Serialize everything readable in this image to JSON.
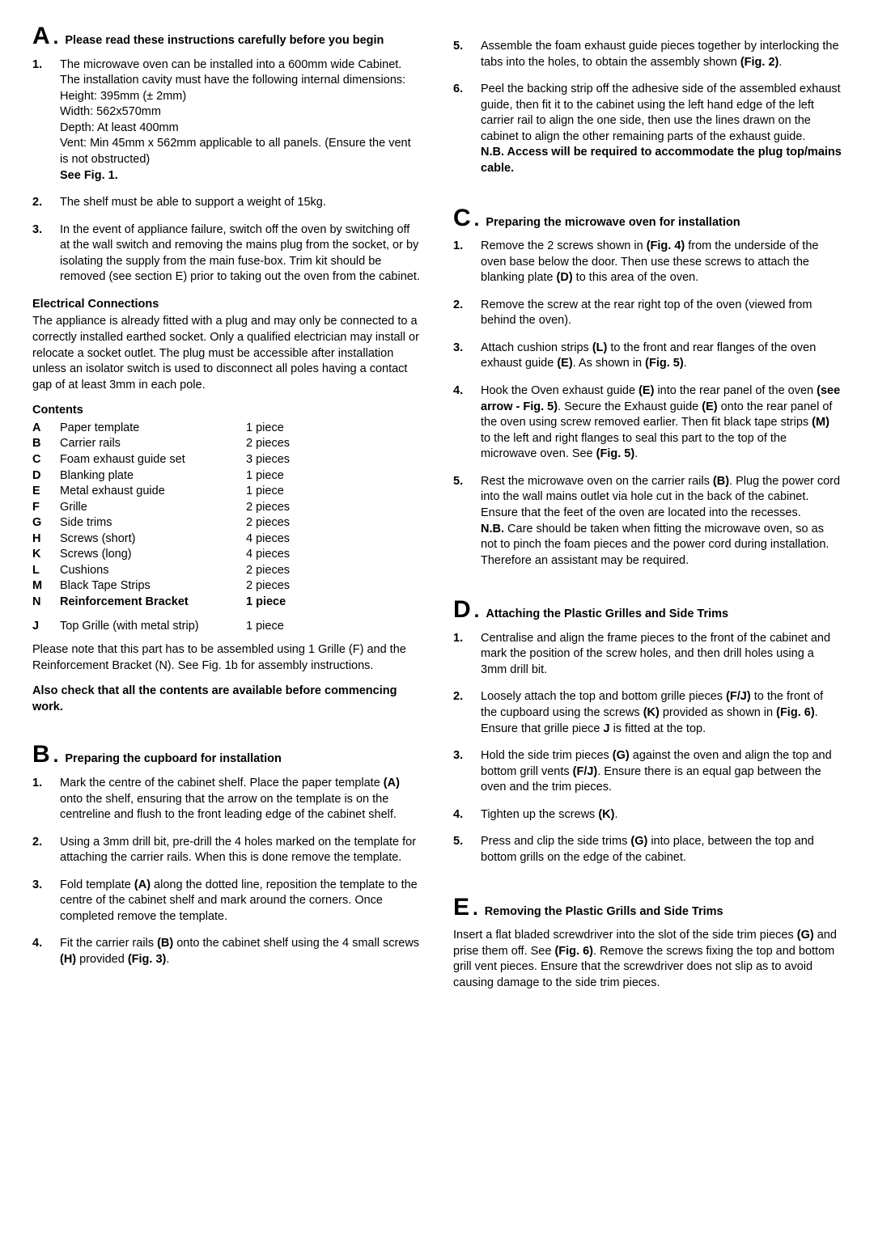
{
  "sections": {
    "A": {
      "letter": "A",
      "title": "Please read these instructions carefully before you begin",
      "items": [
        {
          "num": "1.",
          "body": "The microwave oven can be installed into a 600mm wide Cabinet. The installation cavity must have the following internal dimensions:\nHeight: 395mm (± 2mm)\nWidth: 562x570mm\nDepth: At least 400mm\nVent: Min 45mm x 562mm applicable to all panels. (Ensure the vent is not obstructed)\n**See Fig. 1.**"
        },
        {
          "num": "2.",
          "body": "The shelf must be able to support a weight of 15kg."
        },
        {
          "num": "3.",
          "body": "In the event of appliance failure, switch off the oven by switching off at the wall switch and removing the mains plug from the socket, or by isolating the supply from the main fuse-box. Trim kit should be removed (see section E) prior to taking out the oven from the cabinet."
        }
      ],
      "elec_head": "Electrical Connections",
      "elec_body": "The appliance is already fitted with a plug and may only be connected to a correctly installed earthed socket. Only a qualified electrician may install or relocate a socket outlet. The plug must be accessible after installation unless an isolator switch is used to disconnect all poles having a contact gap of at least 3mm in each pole.",
      "contents_head": "Contents",
      "contents": [
        {
          "l": "A",
          "n": "Paper template",
          "q": "1 piece"
        },
        {
          "l": "B",
          "n": "Carrier rails",
          "q": "2 pieces"
        },
        {
          "l": "C",
          "n": "Foam exhaust guide set",
          "q": "3 pieces"
        },
        {
          "l": "D",
          "n": "Blanking plate",
          "q": "1 piece"
        },
        {
          "l": "E",
          "n": "Metal exhaust guide",
          "q": "1 piece"
        },
        {
          "l": "F",
          "n": "Grille",
          "q": "2 pieces"
        },
        {
          "l": "G",
          "n": "Side trims",
          "q": "2 pieces"
        },
        {
          "l": "H",
          "n": "Screws (short)",
          "q": "4 pieces"
        },
        {
          "l": "K",
          "n": "Screws (long)",
          "q": "4 pieces"
        },
        {
          "l": "L",
          "n": "Cushions",
          "q": "2 pieces"
        },
        {
          "l": "M",
          "n": "Black Tape Strips",
          "q": "2 pieces"
        },
        {
          "l": "N",
          "n": "Reinforcement Bracket",
          "q": "1 piece",
          "bold": true
        }
      ],
      "j_line_l": "J",
      "j_line_n": "Top Grille (with metal strip)",
      "j_line_q": "1 piece",
      "j_note": "Please note that this part has to be assembled using 1 Grille (F) and the Reinforcement Bracket (N). See Fig. 1b for assembly instructions.",
      "check_note": "Also check that all the contents are available before commencing work."
    },
    "B": {
      "letter": "B",
      "title": "Preparing the cupboard for installation",
      "items": [
        {
          "num": "1.",
          "body": "Mark the centre of the cabinet shelf. Place the paper template **(A)** onto the shelf, ensuring that the arrow on the template is on the centreline and flush to the front leading edge of the cabinet shelf."
        },
        {
          "num": "2.",
          "body": "Using a 3mm drill bit, pre-drill the 4 holes marked on the template for attaching the carrier rails. When this is done remove the template."
        },
        {
          "num": "3.",
          "body": "Fold template **(A)** along the dotted line, reposition the template to the centre of the cabinet shelf and mark around the corners. Once completed remove the template."
        },
        {
          "num": "4.",
          "body": "Fit the carrier rails **(B)** onto the cabinet shelf using the 4 small screws **(H)** provided **(Fig. 3)**."
        },
        {
          "num": "5.",
          "body": "Assemble the foam exhaust guide pieces together by interlocking the tabs into the holes, to obtain the assembly shown **(Fig. 2)**."
        },
        {
          "num": "6.",
          "body": "Peel the backing strip off the adhesive side of the assembled exhaust guide, then fit it to the cabinet using the left hand edge of the left carrier rail to align the one side, then use the lines drawn on the cabinet to align the other remaining parts of the exhaust guide.\n**N.B. Access will be required to accommodate the plug top/mains cable.**"
        }
      ]
    },
    "C": {
      "letter": "C",
      "title": "Preparing the microwave oven for installation",
      "items": [
        {
          "num": "1.",
          "body": "Remove the 2 screws shown in **(Fig. 4)** from the underside of the oven base below the door. Then use these screws to attach the blanking plate **(D)** to this area of the oven."
        },
        {
          "num": "2.",
          "body": "Remove the screw at the rear right top of the oven (viewed from behind the oven)."
        },
        {
          "num": "3.",
          "body": "Attach cushion strips **(L)** to the front and rear flanges of the oven exhaust guide **(E)**. As shown in **(Fig. 5)**."
        },
        {
          "num": "4.",
          "body": "Hook the Oven exhaust guide **(E)** into the rear panel of the oven **(see arrow - Fig. 5)**. Secure the Exhaust guide **(E)** onto the rear panel of the oven using screw removed earlier. Then fit black tape strips **(M)** to the left and right flanges to seal this part to the top of the microwave oven. See **(Fig. 5)**."
        },
        {
          "num": "5.",
          "body": "Rest the microwave oven on the carrier rails **(B)**. Plug the power cord into the wall mains outlet via hole cut in the back of the cabinet. Ensure that the feet of the oven are located into the recesses.\n**N.B.** Care should be taken when fitting the microwave oven, so as not to pinch the foam pieces and the power cord during installation. Therefore an assistant may be required."
        }
      ]
    },
    "D": {
      "letter": "D",
      "title": "Attaching the Plastic Grilles and Side Trims",
      "items": [
        {
          "num": "1.",
          "body": "Centralise and align the frame pieces to the front of the cabinet and mark the position of the screw holes, and then drill holes using a 3mm drill bit."
        },
        {
          "num": "2.",
          "body": "Loosely attach the top and bottom grille pieces **(F/J)** to the front of the cupboard using the screws **(K)** provided as shown in **(Fig. 6)**. Ensure that grille piece **J** is fitted at the top."
        },
        {
          "num": "3.",
          "body": "Hold the side trim pieces **(G)** against the oven and align the top and bottom grill vents **(F/J)**. Ensure there is an equal gap between the oven and the trim pieces."
        },
        {
          "num": "4.",
          "body": "Tighten up the screws **(K)**."
        },
        {
          "num": "5.",
          "body": "Press and clip the side trims **(G)** into place, between the top and bottom grills on the edge of the cabinet."
        }
      ]
    },
    "E": {
      "letter": "E",
      "title": "Removing the Plastic Grills and Side Trims",
      "para": "Insert a flat bladed screwdriver into the slot of the side trim pieces **(G)** and prise them off. See **(Fig. 6)**. Remove the screws fixing the top and bottom grill vent pieces. Ensure that the screwdriver does not slip as to avoid causing damage to the side trim pieces."
    }
  }
}
